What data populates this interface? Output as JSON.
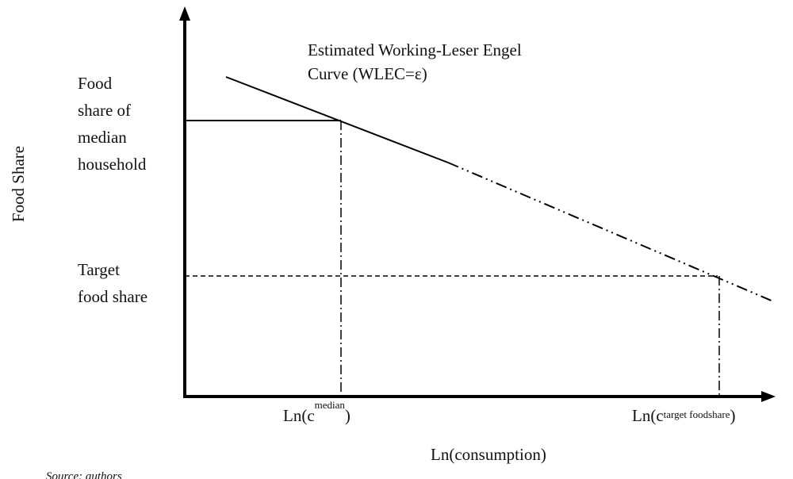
{
  "title_lines": [
    "Estimated Working-Leser Engel",
    "Curve (WLEC=ε)"
  ],
  "y_axis_label": "Food Share",
  "x_axis_label": "Ln(consumption)",
  "median_share_label": [
    "Food",
    "share of",
    "median",
    "household"
  ],
  "target_share_label": [
    "Target",
    "food share"
  ],
  "x_markers": [
    {
      "prefix": "Ln(c",
      "sup": "median",
      "suffix": ")"
    },
    {
      "prefix": "Ln(c",
      "sup": "target foodshare",
      "suffix": ")"
    }
  ],
  "source": "Source: authors"
}
